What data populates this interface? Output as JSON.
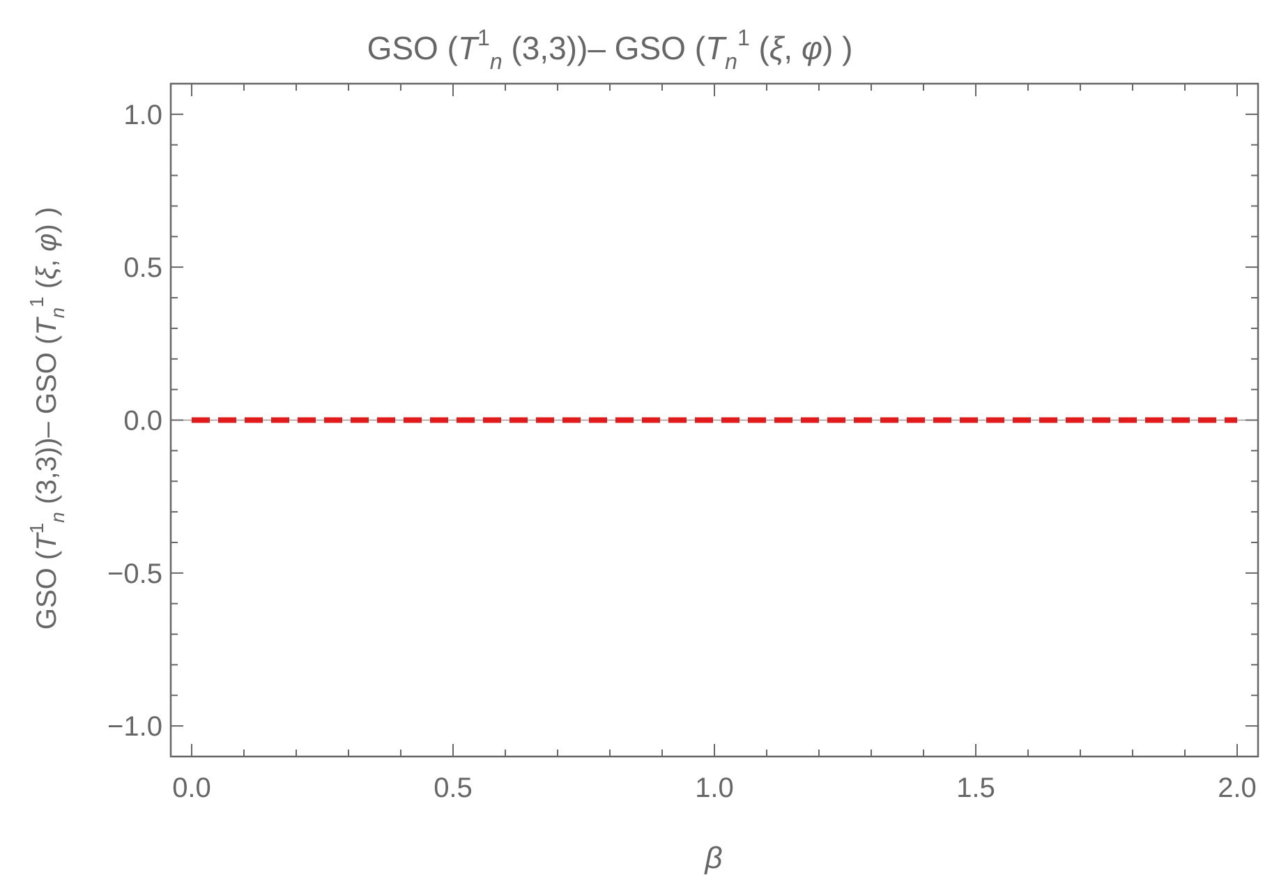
{
  "chart_data": {
    "type": "line",
    "title": {
      "p1": "GSO  (",
      "p2": "T",
      "p3": "1",
      "p4": "n",
      "p5": "  (3,3))– GSO  (",
      "p6": "T",
      "p7": "n",
      "p8": "1",
      "p9": " (",
      "p10": "ξ",
      "p11": ", ",
      "p12": "φ",
      "p13": ")  )"
    },
    "ylabel": {
      "p1": "GSO  (",
      "p2": "T",
      "p3": "1",
      "p4": "n",
      "p5": "  (3,3))– GSO  (",
      "p6": "T",
      "p7": "n",
      "p8": "1",
      "p9": " (",
      "p10": "ξ",
      "p11": ", ",
      "p12": "φ",
      "p13": ")  )"
    },
    "xlabel": "β",
    "xlim": [
      -0.04,
      2.04
    ],
    "ylim": [
      -1.1,
      1.1
    ],
    "x_ticks": [
      {
        "value": 0.0,
        "label": "0.0"
      },
      {
        "value": 0.5,
        "label": "0.5"
      },
      {
        "value": 1.0,
        "label": "1.0"
      },
      {
        "value": 1.5,
        "label": "1.5"
      },
      {
        "value": 2.0,
        "label": "2.0"
      }
    ],
    "y_ticks": [
      {
        "value": -1.0,
        "label": "−1.0"
      },
      {
        "value": -0.5,
        "label": "−0.5"
      },
      {
        "value": 0.0,
        "label": "0.0"
      },
      {
        "value": 0.5,
        "label": "0.5"
      },
      {
        "value": 1.0,
        "label": "1.0"
      }
    ],
    "grid": false,
    "series": [
      {
        "style": "dashed",
        "color": "#e11b1b",
        "x": [
          0.0,
          0.5,
          1.0,
          1.5,
          2.0
        ],
        "y": [
          0.0,
          0.0,
          0.0,
          0.0,
          0.0
        ]
      }
    ]
  }
}
